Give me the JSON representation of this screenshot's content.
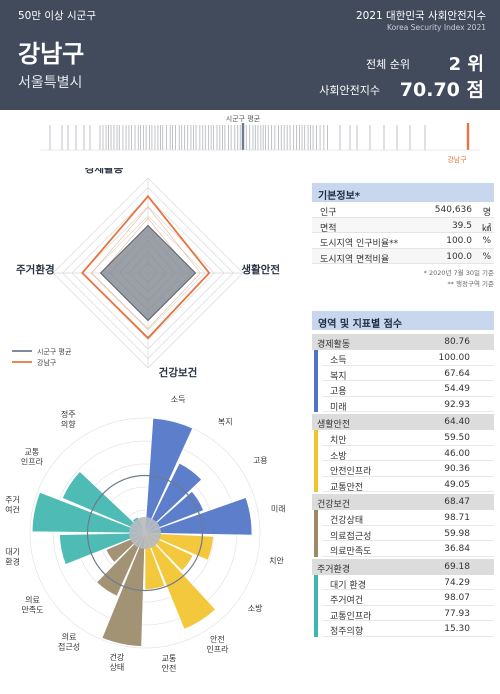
{
  "header": {
    "category": "50만 이상 시군구",
    "edition": "2021 대한민국 사회안전지수",
    "edition_en": "Korea Security Index 2021",
    "name": "강남구",
    "region": "서울특별시",
    "rank_label": "전체 순위",
    "rank_value": "2 위",
    "index_label": "사회안전지수",
    "index_value": "70.70 점"
  },
  "strip": {
    "avg_label": "시군구 평균",
    "self_label": "강남구"
  },
  "colors": {
    "header_bg": "#414b5b",
    "economy": "#4e73c7",
    "safety": "#f3c32d",
    "health": "#9a8a68",
    "housing": "#3fb6ae",
    "self_line": "#e8743e",
    "avg_line": "#6d7a90",
    "table_title_bg": "#c9d7ee"
  },
  "basic_info": {
    "title": "기본정보*",
    "rows": [
      {
        "label": "인구",
        "value": "540,636",
        "unit": "명"
      },
      {
        "label": "면적",
        "value": "39.5",
        "unit": "㎢"
      },
      {
        "label": "도시지역 인구비율**",
        "value": "100.0",
        "unit": "%"
      },
      {
        "label": "도시지역 면적비율",
        "value": "100.0",
        "unit": "%"
      }
    ],
    "note1": "* 2020년 7월 30일 기준",
    "note2": "** 행정구역 기준"
  },
  "scores": {
    "title": "영역 및 지표별 점수",
    "categories": [
      {
        "name": "경제활동",
        "score": "80.76",
        "color": "#4e73c7",
        "items": [
          {
            "name": "소득",
            "score": "100.00"
          },
          {
            "name": "복지",
            "score": "67.64"
          },
          {
            "name": "고용",
            "score": "54.49"
          },
          {
            "name": "미래",
            "score": "92.93"
          }
        ]
      },
      {
        "name": "생활안전",
        "score": "64.40",
        "color": "#f3c32d",
        "items": [
          {
            "name": "치안",
            "score": "59.50"
          },
          {
            "name": "소방",
            "score": "46.00"
          },
          {
            "name": "안전인프라",
            "score": "90.36"
          },
          {
            "name": "교통안전",
            "score": "49.05"
          }
        ]
      },
      {
        "name": "건강보건",
        "score": "68.47",
        "color": "#9a8a68",
        "items": [
          {
            "name": "건강상태",
            "score": "98.71"
          },
          {
            "name": "의료접근성",
            "score": "59.98"
          },
          {
            "name": "의료만족도",
            "score": "36.84"
          }
        ]
      },
      {
        "name": "주거환경",
        "score": "69.18",
        "color": "#3fb6ae",
        "items": [
          {
            "name": "대기 환경",
            "score": "74.29"
          },
          {
            "name": "주거여건",
            "score": "98.07"
          },
          {
            "name": "교통인프라",
            "score": "77.93"
          },
          {
            "name": "정주의향",
            "score": "15.30"
          }
        ]
      }
    ]
  },
  "chart_data": [
    {
      "type": "radar",
      "axes": [
        "경제활동",
        "생활안전",
        "건강보건",
        "주거환경"
      ],
      "range": [
        0,
        100
      ],
      "series": [
        {
          "name": "시군구 평균",
          "values": [
            50,
            50,
            50,
            50
          ]
        },
        {
          "name": "강남구",
          "values": [
            80.76,
            64.4,
            68.47,
            69.18
          ]
        }
      ],
      "legend": [
        "시군구 평균",
        "강남구"
      ]
    },
    {
      "type": "polar-bar",
      "range": [
        0,
        100
      ],
      "categories": [
        "소득",
        "복지",
        "고용",
        "미래",
        "치안",
        "소방",
        "안전 인프라",
        "교통 안전",
        "건강 상태",
        "의료 접근성",
        "의료 만족도",
        "대기 환경",
        "주거 여건",
        "교통 인프라",
        "정주 의향"
      ],
      "values": [
        100.0,
        67.64,
        54.49,
        92.93,
        59.5,
        46.0,
        90.36,
        49.05,
        98.71,
        59.98,
        36.84,
        74.29,
        98.07,
        77.93,
        15.3
      ],
      "groups": [
        "경제활동",
        "경제활동",
        "경제활동",
        "경제활동",
        "생활안전",
        "생활안전",
        "생활안전",
        "생활안전",
        "건강보건",
        "건강보건",
        "건강보건",
        "주거환경",
        "주거환경",
        "주거환경",
        "주거환경"
      ]
    }
  ]
}
